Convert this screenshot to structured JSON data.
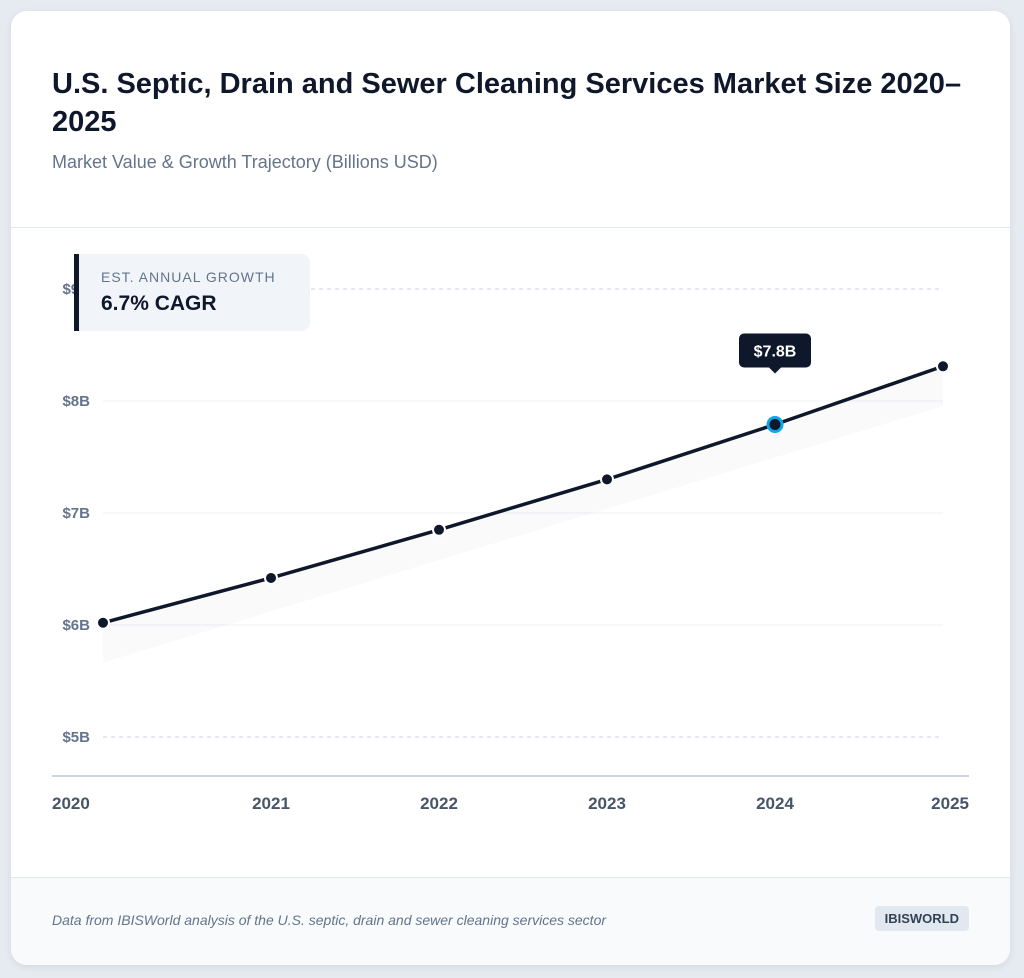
{
  "header": {
    "title": "U.S. Septic, Drain and Sewer Cleaning Services Market Size 2020–2025",
    "subtitle": "Market Value & Growth Trajectory (Billions USD)"
  },
  "callout": {
    "label": "EST. ANNUAL GROWTH",
    "value": "6.7% CAGR"
  },
  "footer": {
    "source": "Data from IBISWorld analysis of the U.S. septic, drain and sewer cleaning services sector",
    "badge": "IBISWORLD"
  },
  "colors": {
    "line": "#0f172a",
    "highlight": "#0ea5e9",
    "grid": "#cbd5e1"
  },
  "chart_data": {
    "type": "line",
    "title": "U.S. Septic, Drain and Sewer Cleaning Services Market Size 2020–2025",
    "subtitle": "Market Value & Growth Trajectory (Billions USD)",
    "categories": [
      "2020",
      "2021",
      "2022",
      "2023",
      "2024",
      "2025"
    ],
    "values": [
      6.02,
      6.42,
      6.85,
      7.3,
      7.79,
      8.31
    ],
    "yticks": [
      {
        "v": 5,
        "label": "$5B"
      },
      {
        "v": 6,
        "label": "$6B"
      },
      {
        "v": 7,
        "label": "$7B"
      },
      {
        "v": 8,
        "label": "$8B"
      },
      {
        "v": 9,
        "label": "$9B"
      }
    ],
    "ylim": [
      5,
      9
    ],
    "grid": true,
    "highlight": {
      "category": "2024",
      "label": "$7.8B"
    }
  }
}
